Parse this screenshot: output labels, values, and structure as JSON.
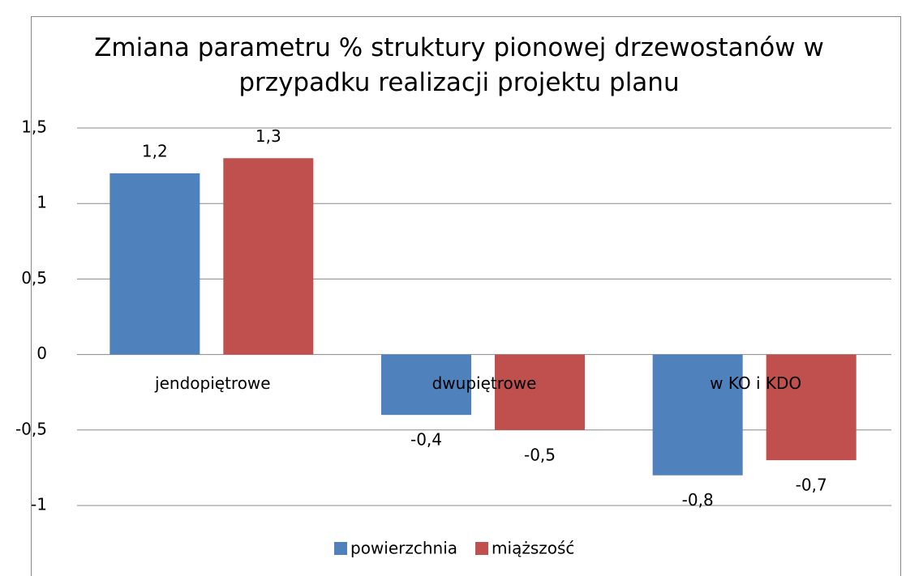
{
  "chart_data": {
    "type": "bar",
    "title": "Zmiana parametru % struktury pionowej drzewostanów w przypadku realizacji projektu planu",
    "categories": [
      "jendopiętrowe",
      "dwupiętrowe",
      "w KO i KDO"
    ],
    "series": [
      {
        "name": "powierzchnia",
        "color": "#4f81bd",
        "values": [
          1.2,
          -0.4,
          -0.8
        ],
        "value_labels": [
          "1,2",
          "-0,4",
          "-0,8"
        ]
      },
      {
        "name": "miąższość",
        "color": "#c0504d",
        "values": [
          1.3,
          -0.5,
          -0.7
        ],
        "value_labels": [
          "1,3",
          "-0,5",
          "-0,7"
        ]
      }
    ],
    "ylim": [
      -1,
      1.5
    ],
    "yticks": [
      -1,
      {
        "value": -0.5,
        "label": "-0,5"
      },
      0,
      {
        "value": 0.5,
        "label": "0,5"
      },
      1,
      {
        "value": 1.5,
        "label": "1,5"
      }
    ],
    "grid": true,
    "legend": "bottom"
  }
}
